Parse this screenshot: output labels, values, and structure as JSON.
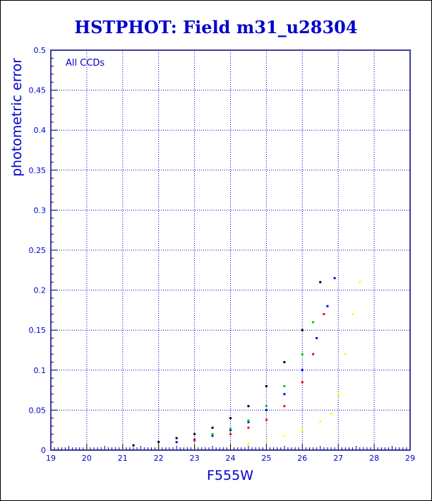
{
  "chart_data": {
    "type": "scatter",
    "title": "HSTPHOT: Field m31_u28304",
    "xlabel": "F555W",
    "ylabel": "photometric error",
    "annotation": "All CCDs",
    "xlim": [
      19,
      29
    ],
    "ylim": [
      0,
      0.5
    ],
    "xticks": [
      "19",
      "20",
      "21",
      "22",
      "23",
      "24",
      "25",
      "26",
      "27",
      "28",
      "29"
    ],
    "yticks": [
      "0",
      "0.05",
      "0.1",
      "0.15",
      "0.2",
      "0.25",
      "0.3",
      "0.35",
      "0.4",
      "0.45",
      "0.5"
    ],
    "grid": true,
    "colors": {
      "frame": "#000080",
      "grid": "#0000cc",
      "text": "#0000cc",
      "yellow": "#ffff00",
      "black": "#000000",
      "blue": "#0000ff",
      "green": "#00cc00",
      "red": "#ff0000"
    },
    "series": [
      {
        "color": "yellow",
        "x": [
          20.0,
          21.0,
          22.0,
          23.0,
          24.0,
          24.5,
          25.0,
          25.5,
          26.0,
          26.5,
          26.8,
          27.0,
          27.2,
          27.4,
          27.6
        ],
        "y": [
          0.003,
          0.003,
          0.003,
          0.003,
          0.005,
          0.008,
          0.012,
          0.018,
          0.025,
          0.036,
          0.045,
          0.07,
          0.12,
          0.17,
          0.21
        ]
      },
      {
        "color": "black",
        "x": [
          21.3,
          22.0,
          22.5,
          23.0,
          23.5,
          24.0,
          24.5,
          25.0,
          25.5,
          26.0,
          26.5
        ],
        "y": [
          0.006,
          0.01,
          0.015,
          0.02,
          0.028,
          0.04,
          0.055,
          0.08,
          0.11,
          0.15,
          0.21
        ]
      },
      {
        "color": "blue",
        "x": [
          22.5,
          23.0,
          23.5,
          24.0,
          24.5,
          25.0,
          25.5,
          26.0,
          26.4,
          26.7,
          26.9
        ],
        "y": [
          0.01,
          0.013,
          0.018,
          0.025,
          0.035,
          0.05,
          0.07,
          0.1,
          0.14,
          0.18,
          0.215
        ]
      },
      {
        "color": "green",
        "x": [
          23.5,
          24.0,
          24.5,
          25.0,
          25.5,
          26.0,
          26.3
        ],
        "y": [
          0.02,
          0.027,
          0.037,
          0.055,
          0.08,
          0.12,
          0.16
        ]
      },
      {
        "color": "red",
        "x": [
          23.0,
          24.0,
          24.5,
          25.0,
          25.5,
          26.0,
          26.3,
          26.6
        ],
        "y": [
          0.012,
          0.02,
          0.028,
          0.038,
          0.055,
          0.085,
          0.12,
          0.17
        ]
      }
    ]
  }
}
